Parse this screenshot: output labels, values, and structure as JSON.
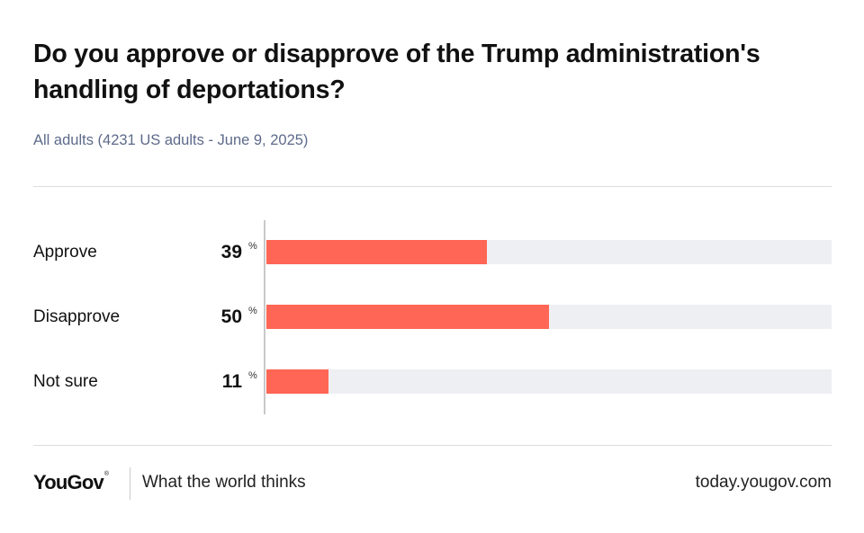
{
  "title": "Do you approve or disapprove of the Trump administration's handling of deportations?",
  "subtitle": "All adults (4231 US adults - June 9, 2025)",
  "colors": {
    "bar": "#ff6655",
    "track": "#eeeff3",
    "subtitle": "#5d6a8a"
  },
  "chart_data": {
    "type": "bar",
    "orientation": "horizontal",
    "categories": [
      "Approve",
      "Disapprove",
      "Not sure"
    ],
    "values": [
      39,
      50,
      11
    ],
    "unit": "%",
    "xlim": [
      0,
      100
    ],
    "grid": false
  },
  "footer": {
    "logo": "YouGov",
    "logo_mark": "®",
    "tagline": "What the world thinks",
    "url": "today.yougov.com"
  }
}
